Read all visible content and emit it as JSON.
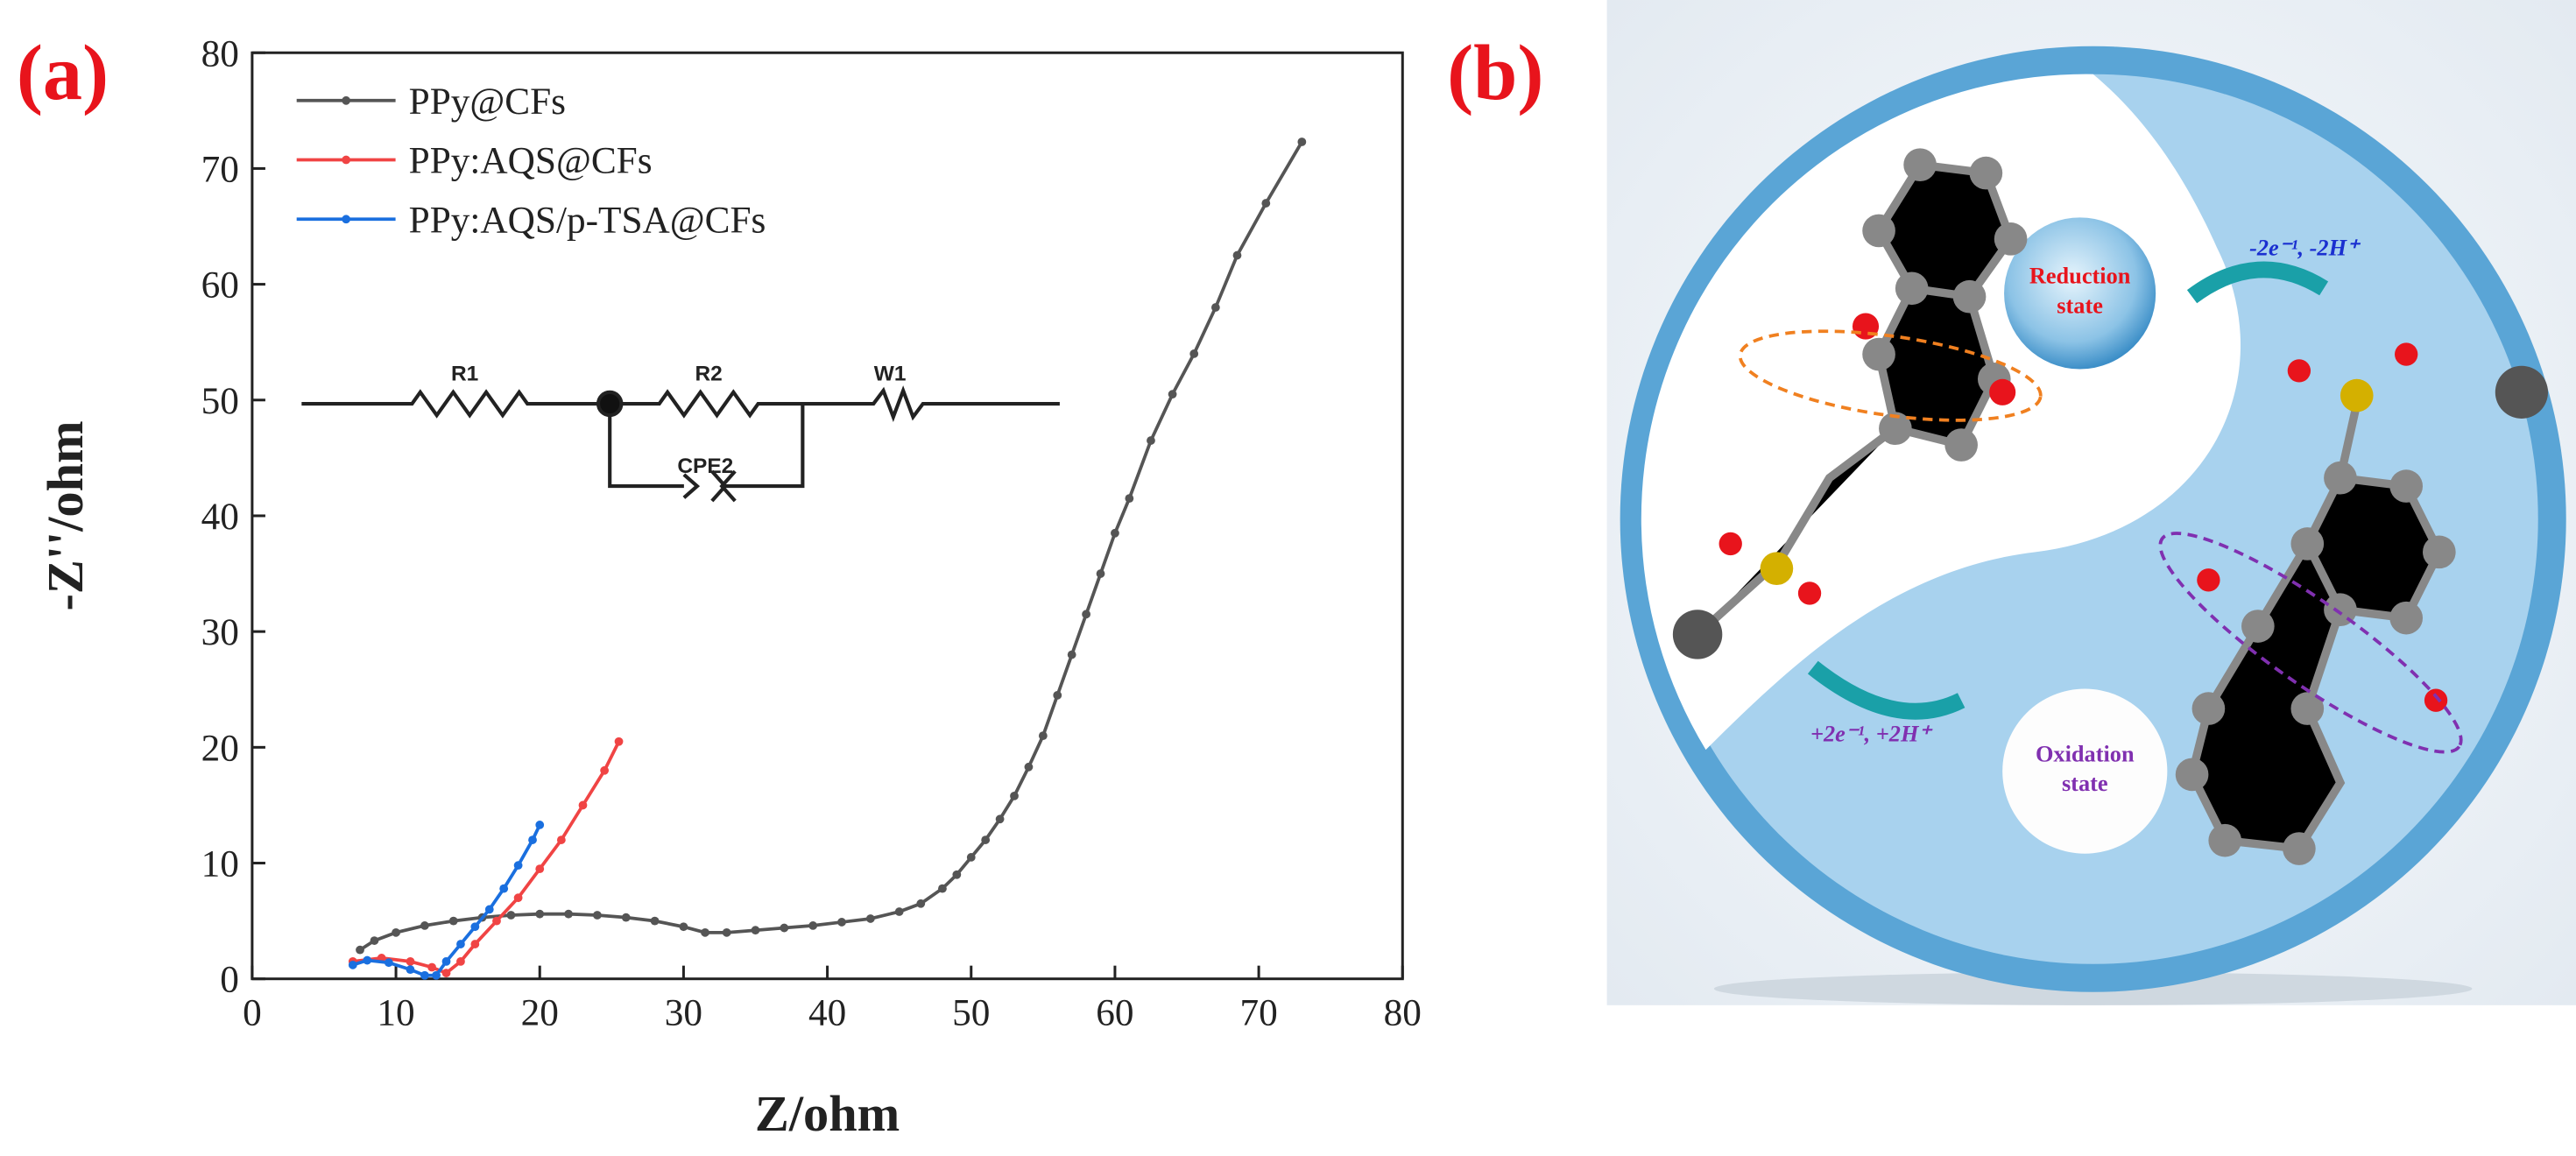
{
  "panel_labels": [
    "(a)",
    "(b)"
  ],
  "circuit": [
    "R1",
    "R2",
    "W1",
    "CPE2"
  ],
  "scheme": {
    "reduction": [
      "Reduction",
      "state"
    ],
    "oxidation": [
      "Oxidation",
      "state"
    ],
    "reduction_step": "-2e⁻¹, -2H⁺",
    "oxidation_step": "+2e⁻¹, +2H⁺"
  },
  "chart_data": {
    "type": "line",
    "x_label": "Z/ohm",
    "y_label": "-Z''/ohm",
    "xlim": [
      0,
      80
    ],
    "xticks": [
      0,
      10,
      20,
      30,
      40,
      50,
      60,
      70,
      80
    ],
    "ylim": [
      0,
      80
    ],
    "yticks": [
      0,
      10,
      20,
      30,
      40,
      50,
      60,
      70,
      80
    ],
    "legend": "upper left",
    "markers": true,
    "series": [
      {
        "name": "PPy@CFs",
        "color": "#555555",
        "x": [
          7.5,
          8.5,
          10,
          12,
          14,
          16,
          18,
          20,
          22,
          24,
          26,
          28,
          30,
          31.5,
          33,
          35,
          37,
          39,
          41,
          43,
          45,
          46.5,
          48,
          49,
          50,
          51,
          52,
          53,
          54,
          55,
          56,
          57,
          58,
          59,
          60,
          61,
          62.5,
          64,
          65.5,
          67,
          68.5,
          70.5,
          73
        ],
        "values": [
          2.5,
          3.3,
          4.0,
          4.6,
          5.0,
          5.3,
          5.5,
          5.6,
          5.6,
          5.5,
          5.3,
          5.0,
          4.5,
          4.0,
          4.0,
          4.2,
          4.4,
          4.6,
          4.9,
          5.2,
          5.8,
          6.5,
          7.8,
          9,
          10.5,
          12,
          13.8,
          15.8,
          18.3,
          21,
          24.5,
          28,
          31.5,
          35,
          38.5,
          41.5,
          46.5,
          50.5,
          54,
          58,
          62.5,
          67,
          72.3
        ]
      },
      {
        "name": "PPy:AQS@CFs",
        "color": "#f04444",
        "x": [
          7,
          9,
          11,
          12.5,
          13.5,
          14.5,
          15.5,
          17,
          18.5,
          20,
          21.5,
          23,
          24.5,
          25.5
        ],
        "values": [
          1.5,
          1.8,
          1.5,
          1,
          0.5,
          1.5,
          3,
          5,
          7,
          9.5,
          12,
          15,
          18,
          20.5
        ]
      },
      {
        "name": "PPy:AQS/p-TSA@CFs",
        "color": "#1a6fdf",
        "x": [
          7,
          8,
          9.5,
          11,
          12,
          12.8,
          13.5,
          14.5,
          15.5,
          16.5,
          17.5,
          18.5,
          19.5,
          20
        ],
        "values": [
          1.2,
          1.6,
          1.4,
          0.8,
          0.3,
          0.3,
          1.5,
          3,
          4.5,
          6,
          7.8,
          9.8,
          12,
          13.3
        ]
      }
    ]
  }
}
